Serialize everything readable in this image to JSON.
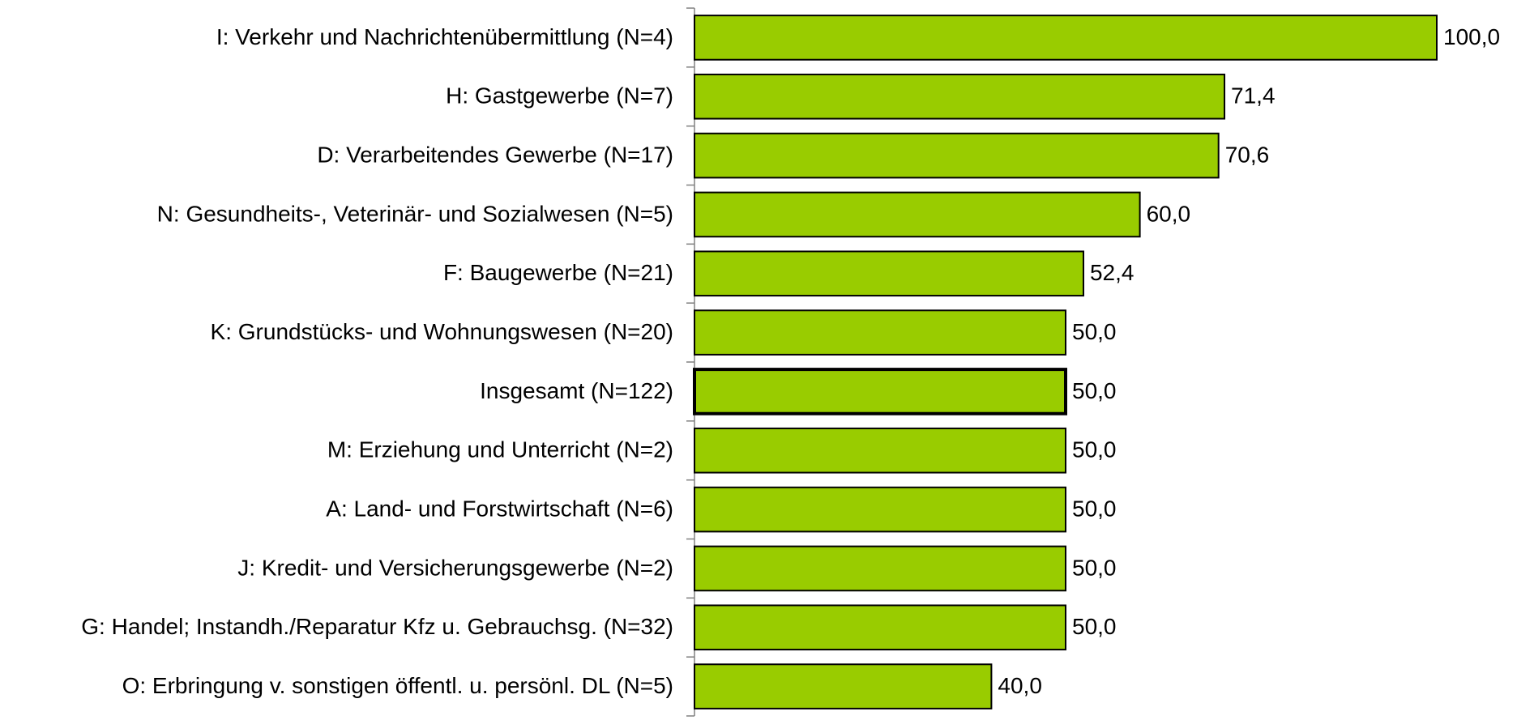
{
  "chart_data": {
    "type": "bar",
    "orientation": "horizontal",
    "categories": [
      "I: Verkehr und Nachrichtenübermittlung (N=4)",
      "H: Gastgewerbe (N=7)",
      "D: Verarbeitendes Gewerbe (N=17)",
      "N: Gesundheits-, Veterinär- und Sozialwesen (N=5)",
      "F: Baugewerbe (N=21)",
      "K: Grundstücks- und Wohnungswesen (N=20)",
      "Insgesamt (N=122)",
      "M: Erziehung und Unterricht (N=2)",
      "A: Land- und Forstwirtschaft (N=6)",
      "J: Kredit- und Versicherungsgewerbe (N=2)",
      "G: Handel; Instandh./Reparatur Kfz u. Gebrauchsg. (N=32)",
      "O: Erbringung v. sonstigen öffentl. u. persönl. DL (N=5)"
    ],
    "values": [
      100.0,
      71.4,
      70.6,
      60.0,
      52.4,
      50.0,
      50.0,
      50.0,
      50.0,
      50.0,
      50.0,
      40.0
    ],
    "value_labels": [
      "100,0",
      "71,4",
      "70,6",
      "60,0",
      "52,4",
      "50,0",
      "50,0",
      "50,0",
      "50,0",
      "50,0",
      "50,0",
      "40,0"
    ],
    "color": "#99cc00",
    "highlight": 6,
    "xlim": [
      0,
      100
    ]
  }
}
